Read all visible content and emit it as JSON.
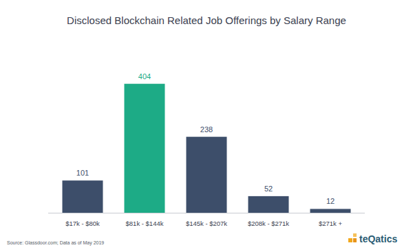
{
  "chart_data": {
    "type": "bar",
    "title": "Disclosed Blockchain Related Job Offerings by Salary Range",
    "categories": [
      "$17k - $80k",
      "$81k - $144k",
      "$145k - $207k",
      "$208k - $271k",
      "$271k +"
    ],
    "values": [
      101,
      404,
      238,
      52,
      12
    ],
    "colors": [
      "#3d4e6a",
      "#1dab86",
      "#3d4e6a",
      "#3d4e6a",
      "#3d4e6a"
    ],
    "ylim": [
      0,
      440
    ],
    "data_labels": true,
    "tick_labels": "x",
    "source": "Source: Glassdoor.com; Data as of May 2019",
    "logo_text": "teQatics"
  }
}
